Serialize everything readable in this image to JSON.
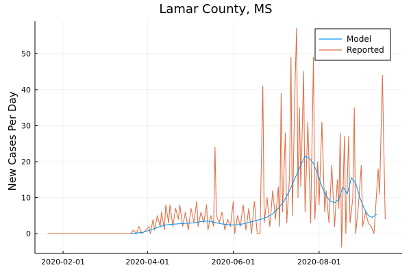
{
  "chart_data": {
    "type": "line",
    "title": "Lamar County, MS",
    "xlabel": "",
    "ylabel": "New Cases Per Day",
    "x_axis": {
      "type": "date",
      "range": [
        "2020-01-12",
        "2020-09-29"
      ],
      "ticks": [
        "2020-02-01",
        "2020-04-01",
        "2020-06-01",
        "2020-08-01"
      ]
    },
    "y_axis": {
      "range": [
        -5.5,
        59
      ],
      "ticks": [
        0,
        10,
        20,
        30,
        40,
        50
      ]
    },
    "grid": true,
    "legend_placement": "top-right",
    "series": [
      {
        "name": "Model",
        "color": "#009af9",
        "points": [
          [
            "2020-03-20",
            0
          ],
          [
            "2020-03-25",
            0.2
          ],
          [
            "2020-03-29",
            0.4
          ],
          [
            "2020-04-02",
            0.9
          ],
          [
            "2020-04-06",
            1.4
          ],
          [
            "2020-04-10",
            2.0
          ],
          [
            "2020-04-14",
            2.4
          ],
          [
            "2020-04-18",
            2.6
          ],
          [
            "2020-04-22",
            2.7
          ],
          [
            "2020-04-26",
            2.8
          ],
          [
            "2020-04-30",
            2.9
          ],
          [
            "2020-05-04",
            3.0
          ],
          [
            "2020-05-08",
            3.3
          ],
          [
            "2020-05-12",
            3.5
          ],
          [
            "2020-05-16",
            3.4
          ],
          [
            "2020-05-20",
            3.0
          ],
          [
            "2020-05-24",
            2.7
          ],
          [
            "2020-05-28",
            2.5
          ],
          [
            "2020-06-01",
            2.4
          ],
          [
            "2020-06-05",
            2.5
          ],
          [
            "2020-06-09",
            2.8
          ],
          [
            "2020-06-13",
            3.2
          ],
          [
            "2020-06-17",
            3.6
          ],
          [
            "2020-06-21",
            4.0
          ],
          [
            "2020-06-25",
            4.6
          ],
          [
            "2020-06-29",
            5.5
          ],
          [
            "2020-07-03",
            7.0
          ],
          [
            "2020-07-07",
            9.0
          ],
          [
            "2020-07-11",
            12.0
          ],
          [
            "2020-07-15",
            15.5
          ],
          [
            "2020-07-19",
            19.0
          ],
          [
            "2020-07-22",
            21.5
          ],
          [
            "2020-07-25",
            21.0
          ],
          [
            "2020-07-28",
            19.5
          ],
          [
            "2020-07-31",
            16.5
          ],
          [
            "2020-08-03",
            13.0
          ],
          [
            "2020-08-06",
            10.5
          ],
          [
            "2020-08-09",
            9.0
          ],
          [
            "2020-08-12",
            8.6
          ],
          [
            "2020-08-15",
            9.5
          ],
          [
            "2020-08-18",
            13.0
          ],
          [
            "2020-08-21",
            11.0
          ],
          [
            "2020-08-24",
            15.5
          ],
          [
            "2020-08-27",
            14.0
          ],
          [
            "2020-08-30",
            10.0
          ],
          [
            "2020-09-02",
            7.0
          ],
          [
            "2020-09-05",
            5.0
          ],
          [
            "2020-09-08",
            4.5
          ],
          [
            "2020-09-11",
            5.5
          ]
        ]
      },
      {
        "name": "Reported",
        "color": "#e26f46",
        "points": [
          [
            "2020-01-21",
            0
          ],
          [
            "2020-03-17",
            0
          ],
          [
            "2020-03-20",
            0
          ],
          [
            "2020-03-22",
            1
          ],
          [
            "2020-03-24",
            0
          ],
          [
            "2020-03-26",
            2
          ],
          [
            "2020-03-28",
            0
          ],
          [
            "2020-03-31",
            1
          ],
          [
            "2020-04-02",
            2
          ],
          [
            "2020-04-03",
            0
          ],
          [
            "2020-04-05",
            4
          ],
          [
            "2020-04-06",
            1
          ],
          [
            "2020-04-08",
            5
          ],
          [
            "2020-04-10",
            2
          ],
          [
            "2020-04-11",
            6
          ],
          [
            "2020-04-13",
            1
          ],
          [
            "2020-04-14",
            8
          ],
          [
            "2020-04-16",
            3
          ],
          [
            "2020-04-17",
            8
          ],
          [
            "2020-04-19",
            2
          ],
          [
            "2020-04-21",
            7
          ],
          [
            "2020-04-23",
            4
          ],
          [
            "2020-04-24",
            8
          ],
          [
            "2020-04-26",
            2
          ],
          [
            "2020-04-28",
            6
          ],
          [
            "2020-04-30",
            1
          ],
          [
            "2020-05-02",
            7
          ],
          [
            "2020-05-04",
            3
          ],
          [
            "2020-05-06",
            9
          ],
          [
            "2020-05-07",
            2
          ],
          [
            "2020-05-09",
            6
          ],
          [
            "2020-05-11",
            3
          ],
          [
            "2020-05-13",
            8
          ],
          [
            "2020-05-14",
            1
          ],
          [
            "2020-05-16",
            5
          ],
          [
            "2020-05-18",
            2
          ],
          [
            "2020-05-19",
            24
          ],
          [
            "2020-05-20",
            5
          ],
          [
            "2020-05-22",
            3
          ],
          [
            "2020-05-24",
            6
          ],
          [
            "2020-05-26",
            1
          ],
          [
            "2020-05-28",
            4
          ],
          [
            "2020-05-30",
            2
          ],
          [
            "2020-06-01",
            9
          ],
          [
            "2020-06-02",
            0
          ],
          [
            "2020-06-04",
            5
          ],
          [
            "2020-06-06",
            2
          ],
          [
            "2020-06-08",
            8
          ],
          [
            "2020-06-10",
            1
          ],
          [
            "2020-06-12",
            7
          ],
          [
            "2020-06-14",
            0
          ],
          [
            "2020-06-16",
            9
          ],
          [
            "2020-06-18",
            0
          ],
          [
            "2020-06-20",
            0
          ],
          [
            "2020-06-22",
            41
          ],
          [
            "2020-06-23",
            3
          ],
          [
            "2020-06-25",
            10
          ],
          [
            "2020-06-27",
            2
          ],
          [
            "2020-06-29",
            12
          ],
          [
            "2020-07-01",
            4
          ],
          [
            "2020-07-03",
            13
          ],
          [
            "2020-07-04",
            2
          ],
          [
            "2020-07-05",
            39
          ],
          [
            "2020-07-06",
            6
          ],
          [
            "2020-07-08",
            28
          ],
          [
            "2020-07-09",
            3
          ],
          [
            "2020-07-11",
            16
          ],
          [
            "2020-07-12",
            49
          ],
          [
            "2020-07-13",
            5
          ],
          [
            "2020-07-15",
            43
          ],
          [
            "2020-07-16",
            57
          ],
          [
            "2020-07-17",
            10
          ],
          [
            "2020-07-18",
            35
          ],
          [
            "2020-07-19",
            13
          ],
          [
            "2020-07-21",
            45
          ],
          [
            "2020-07-22",
            6
          ],
          [
            "2020-07-24",
            31
          ],
          [
            "2020-07-26",
            3
          ],
          [
            "2020-07-28",
            49
          ],
          [
            "2020-07-29",
            4
          ],
          [
            "2020-07-31",
            20
          ],
          [
            "2020-08-01",
            8
          ],
          [
            "2020-08-03",
            31
          ],
          [
            "2020-08-05",
            6
          ],
          [
            "2020-08-06",
            12
          ],
          [
            "2020-08-08",
            3
          ],
          [
            "2020-08-10",
            19
          ],
          [
            "2020-08-12",
            2
          ],
          [
            "2020-08-14",
            15
          ],
          [
            "2020-08-15",
            7
          ],
          [
            "2020-08-16",
            28
          ],
          [
            "2020-08-17",
            -3.8
          ],
          [
            "2020-08-19",
            27
          ],
          [
            "2020-08-20",
            0
          ],
          [
            "2020-08-22",
            27
          ],
          [
            "2020-08-23",
            3
          ],
          [
            "2020-08-25",
            10
          ],
          [
            "2020-08-26",
            35
          ],
          [
            "2020-08-27",
            0
          ],
          [
            "2020-08-29",
            8
          ],
          [
            "2020-08-31",
            19
          ],
          [
            "2020-09-01",
            2
          ],
          [
            "2020-09-03",
            6
          ],
          [
            "2020-09-05",
            3
          ],
          [
            "2020-09-07",
            2
          ],
          [
            "2020-09-09",
            0
          ],
          [
            "2020-09-12",
            18
          ],
          [
            "2020-09-13",
            11
          ],
          [
            "2020-09-15",
            44
          ],
          [
            "2020-09-17",
            4
          ]
        ]
      }
    ]
  }
}
